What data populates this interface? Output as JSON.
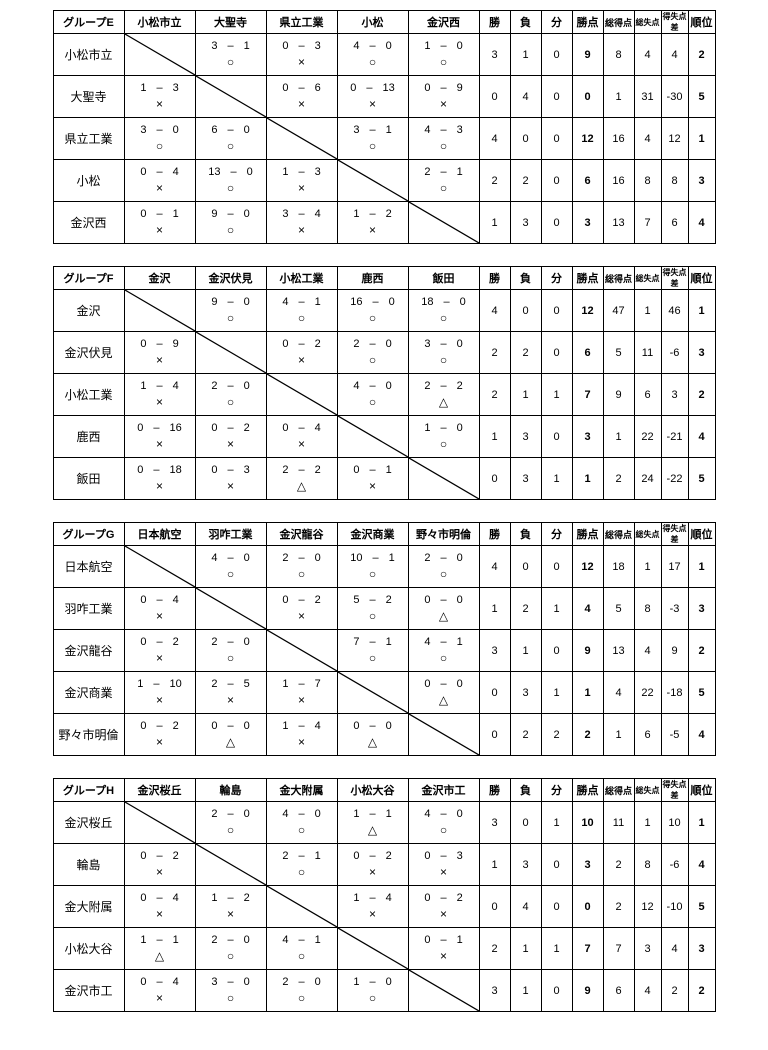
{
  "stat_headers": [
    "勝",
    "負",
    "分",
    "勝点",
    "総得点",
    "総失点",
    "得失点差",
    "順位"
  ],
  "groups": [
    {
      "name": "グループE",
      "teams": [
        "小松市立",
        "大聖寺",
        "県立工業",
        "小松",
        "金沢西"
      ],
      "results": [
        [
          null,
          {
            "h": 3,
            "a": 1,
            "m": "○"
          },
          {
            "h": 0,
            "a": 3,
            "m": "×"
          },
          {
            "h": 4,
            "a": 0,
            "m": "○"
          },
          {
            "h": 1,
            "a": 0,
            "m": "○"
          }
        ],
        [
          {
            "h": 1,
            "a": 3,
            "m": "×"
          },
          null,
          {
            "h": 0,
            "a": 6,
            "m": "×"
          },
          {
            "h": 0,
            "a": 13,
            "m": "×"
          },
          {
            "h": 0,
            "a": 9,
            "m": "×"
          }
        ],
        [
          {
            "h": 3,
            "a": 0,
            "m": "○"
          },
          {
            "h": 6,
            "a": 0,
            "m": "○"
          },
          null,
          {
            "h": 3,
            "a": 1,
            "m": "○"
          },
          {
            "h": 4,
            "a": 3,
            "m": "○"
          }
        ],
        [
          {
            "h": 0,
            "a": 4,
            "m": "×"
          },
          {
            "h": 13,
            "a": 0,
            "m": "○"
          },
          {
            "h": 1,
            "a": 3,
            "m": "×"
          },
          null,
          {
            "h": 2,
            "a": 1,
            "m": "○"
          }
        ],
        [
          {
            "h": 0,
            "a": 1,
            "m": "×"
          },
          {
            "h": 9,
            "a": 0,
            "m": "○"
          },
          {
            "h": 3,
            "a": 4,
            "m": "×"
          },
          {
            "h": 1,
            "a": 2,
            "m": "×"
          },
          null
        ]
      ],
      "stats": [
        {
          "w": 3,
          "l": 1,
          "d": 0,
          "pts": 9,
          "gf": 8,
          "ga": 4,
          "gd": 4,
          "rank": 2
        },
        {
          "w": 0,
          "l": 4,
          "d": 0,
          "pts": 0,
          "gf": 1,
          "ga": 31,
          "gd": -30,
          "rank": 5
        },
        {
          "w": 4,
          "l": 0,
          "d": 0,
          "pts": 12,
          "gf": 16,
          "ga": 4,
          "gd": 12,
          "rank": 1
        },
        {
          "w": 2,
          "l": 2,
          "d": 0,
          "pts": 6,
          "gf": 16,
          "ga": 8,
          "gd": 8,
          "rank": 3
        },
        {
          "w": 1,
          "l": 3,
          "d": 0,
          "pts": 3,
          "gf": 13,
          "ga": 7,
          "gd": 6,
          "rank": 4
        }
      ]
    },
    {
      "name": "グループF",
      "teams": [
        "金沢",
        "金沢伏見",
        "小松工業",
        "鹿西",
        "飯田"
      ],
      "results": [
        [
          null,
          {
            "h": 9,
            "a": 0,
            "m": "○"
          },
          {
            "h": 4,
            "a": 1,
            "m": "○"
          },
          {
            "h": 16,
            "a": 0,
            "m": "○"
          },
          {
            "h": 18,
            "a": 0,
            "m": "○"
          }
        ],
        [
          {
            "h": 0,
            "a": 9,
            "m": "×"
          },
          null,
          {
            "h": 0,
            "a": 2,
            "m": "×"
          },
          {
            "h": 2,
            "a": 0,
            "m": "○"
          },
          {
            "h": 3,
            "a": 0,
            "m": "○"
          }
        ],
        [
          {
            "h": 1,
            "a": 4,
            "m": "×"
          },
          {
            "h": 2,
            "a": 0,
            "m": "○"
          },
          null,
          {
            "h": 4,
            "a": 0,
            "m": "○"
          },
          {
            "h": 2,
            "a": 2,
            "m": "△"
          }
        ],
        [
          {
            "h": 0,
            "a": 16,
            "m": "×"
          },
          {
            "h": 0,
            "a": 2,
            "m": "×"
          },
          {
            "h": 0,
            "a": 4,
            "m": "×"
          },
          null,
          {
            "h": 1,
            "a": 0,
            "m": "○"
          }
        ],
        [
          {
            "h": 0,
            "a": 18,
            "m": "×"
          },
          {
            "h": 0,
            "a": 3,
            "m": "×"
          },
          {
            "h": 2,
            "a": 2,
            "m": "△"
          },
          {
            "h": 0,
            "a": 1,
            "m": "×"
          },
          null
        ]
      ],
      "stats": [
        {
          "w": 4,
          "l": 0,
          "d": 0,
          "pts": 12,
          "gf": 47,
          "ga": 1,
          "gd": 46,
          "rank": 1
        },
        {
          "w": 2,
          "l": 2,
          "d": 0,
          "pts": 6,
          "gf": 5,
          "ga": 11,
          "gd": -6,
          "rank": 3
        },
        {
          "w": 2,
          "l": 1,
          "d": 1,
          "pts": 7,
          "gf": 9,
          "ga": 6,
          "gd": 3,
          "rank": 2
        },
        {
          "w": 1,
          "l": 3,
          "d": 0,
          "pts": 3,
          "gf": 1,
          "ga": 22,
          "gd": -21,
          "rank": 4
        },
        {
          "w": 0,
          "l": 3,
          "d": 1,
          "pts": 1,
          "gf": 2,
          "ga": 24,
          "gd": -22,
          "rank": 5
        }
      ]
    },
    {
      "name": "グループG",
      "teams": [
        "日本航空",
        "羽咋工業",
        "金沢龍谷",
        "金沢商業",
        "野々市明倫"
      ],
      "results": [
        [
          null,
          {
            "h": 4,
            "a": 0,
            "m": "○"
          },
          {
            "h": 2,
            "a": 0,
            "m": "○"
          },
          {
            "h": 10,
            "a": 1,
            "m": "○"
          },
          {
            "h": 2,
            "a": 0,
            "m": "○"
          }
        ],
        [
          {
            "h": 0,
            "a": 4,
            "m": "×"
          },
          null,
          {
            "h": 0,
            "a": 2,
            "m": "×"
          },
          {
            "h": 5,
            "a": 2,
            "m": "○"
          },
          {
            "h": 0,
            "a": 0,
            "m": "△"
          }
        ],
        [
          {
            "h": 0,
            "a": 2,
            "m": "×"
          },
          {
            "h": 2,
            "a": 0,
            "m": "○"
          },
          null,
          {
            "h": 7,
            "a": 1,
            "m": "○"
          },
          {
            "h": 4,
            "a": 1,
            "m": "○"
          }
        ],
        [
          {
            "h": 1,
            "a": 10,
            "m": "×"
          },
          {
            "h": 2,
            "a": 5,
            "m": "×"
          },
          {
            "h": 1,
            "a": 7,
            "m": "×"
          },
          null,
          {
            "h": 0,
            "a": 0,
            "m": "△"
          }
        ],
        [
          {
            "h": 0,
            "a": 2,
            "m": "×"
          },
          {
            "h": 0,
            "a": 0,
            "m": "△"
          },
          {
            "h": 1,
            "a": 4,
            "m": "×"
          },
          {
            "h": 0,
            "a": 0,
            "m": "△"
          },
          null
        ]
      ],
      "stats": [
        {
          "w": 4,
          "l": 0,
          "d": 0,
          "pts": 12,
          "gf": 18,
          "ga": 1,
          "gd": 17,
          "rank": 1
        },
        {
          "w": 1,
          "l": 2,
          "d": 1,
          "pts": 4,
          "gf": 5,
          "ga": 8,
          "gd": -3,
          "rank": 3
        },
        {
          "w": 3,
          "l": 1,
          "d": 0,
          "pts": 9,
          "gf": 13,
          "ga": 4,
          "gd": 9,
          "rank": 2
        },
        {
          "w": 0,
          "l": 3,
          "d": 1,
          "pts": 1,
          "gf": 4,
          "ga": 22,
          "gd": -18,
          "rank": 5
        },
        {
          "w": 0,
          "l": 2,
          "d": 2,
          "pts": 2,
          "gf": 1,
          "ga": 6,
          "gd": -5,
          "rank": 4
        }
      ]
    },
    {
      "name": "グループH",
      "teams": [
        "金沢桜丘",
        "輪島",
        "金大附属",
        "小松大谷",
        "金沢市工"
      ],
      "results": [
        [
          null,
          {
            "h": 2,
            "a": 0,
            "m": "○"
          },
          {
            "h": 4,
            "a": 0,
            "m": "○"
          },
          {
            "h": 1,
            "a": 1,
            "m": "△"
          },
          {
            "h": 4,
            "a": 0,
            "m": "○"
          }
        ],
        [
          {
            "h": 0,
            "a": 2,
            "m": "×"
          },
          null,
          {
            "h": 2,
            "a": 1,
            "m": "○"
          },
          {
            "h": 0,
            "a": 2,
            "m": "×"
          },
          {
            "h": 0,
            "a": 3,
            "m": "×"
          }
        ],
        [
          {
            "h": 0,
            "a": 4,
            "m": "×"
          },
          {
            "h": 1,
            "a": 2,
            "m": "×"
          },
          null,
          {
            "h": 1,
            "a": 4,
            "m": "×"
          },
          {
            "h": 0,
            "a": 2,
            "m": "×"
          }
        ],
        [
          {
            "h": 1,
            "a": 1,
            "m": "△"
          },
          {
            "h": 2,
            "a": 0,
            "m": "○"
          },
          {
            "h": 4,
            "a": 1,
            "m": "○"
          },
          null,
          {
            "h": 0,
            "a": 1,
            "m": "×"
          }
        ],
        [
          {
            "h": 0,
            "a": 4,
            "m": "×"
          },
          {
            "h": 3,
            "a": 0,
            "m": "○"
          },
          {
            "h": 2,
            "a": 0,
            "m": "○"
          },
          {
            "h": 1,
            "a": 0,
            "m": "○"
          },
          null
        ]
      ],
      "stats": [
        {
          "w": 3,
          "l": 0,
          "d": 1,
          "pts": 10,
          "gf": 11,
          "ga": 1,
          "gd": 10,
          "rank": 1
        },
        {
          "w": 1,
          "l": 3,
          "d": 0,
          "pts": 3,
          "gf": 2,
          "ga": 8,
          "gd": -6,
          "rank": 4
        },
        {
          "w": 0,
          "l": 4,
          "d": 0,
          "pts": 0,
          "gf": 2,
          "ga": 12,
          "gd": -10,
          "rank": 5
        },
        {
          "w": 2,
          "l": 1,
          "d": 1,
          "pts": 7,
          "gf": 7,
          "ga": 3,
          "gd": 4,
          "rank": 3
        },
        {
          "w": 3,
          "l": 1,
          "d": 0,
          "pts": 9,
          "gf": 6,
          "ga": 4,
          "gd": 2,
          "rank": 2
        }
      ]
    }
  ]
}
